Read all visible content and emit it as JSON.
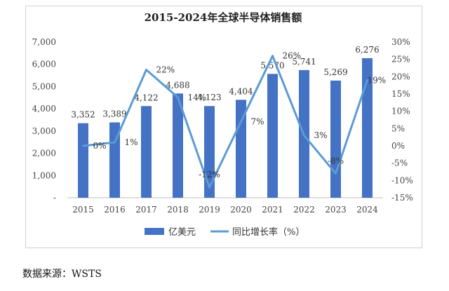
{
  "chart_data": {
    "type": "bar",
    "title": "2015-2024年全球半导体销售额",
    "categories": [
      "2015",
      "2016",
      "2017",
      "2018",
      "2019",
      "2020",
      "2021",
      "2022",
      "2023",
      "2024"
    ],
    "series": [
      {
        "name": "亿美元",
        "type": "bar",
        "axis": "left",
        "color": "#4472C4",
        "values": [
          3352,
          3389,
          4122,
          4688,
          4123,
          4404,
          5570,
          5741,
          5269,
          6276
        ],
        "labels": [
          "3,352",
          "3,389",
          "4,122",
          "4,688",
          "4,123",
          "4,404",
          "5,570",
          "5,741",
          "5,269",
          "6,276"
        ]
      },
      {
        "name": "同比增长率（%）",
        "type": "line",
        "axis": "right",
        "color": "#5B9BD5",
        "values": [
          0,
          1,
          22,
          14,
          -12,
          7,
          26,
          3,
          -8,
          19
        ],
        "labels": [
          "0%",
          "1%",
          "22%",
          "14%",
          "-12%",
          "7%",
          "26%",
          "3%",
          "-8%",
          "19%"
        ]
      }
    ],
    "y_left": {
      "ylim": [
        0,
        7000
      ],
      "ticks": [
        "-",
        "1,000",
        "2,000",
        "3,000",
        "4,000",
        "5,000",
        "6,000",
        "7,000"
      ]
    },
    "y_right": {
      "ylim": [
        -15,
        30
      ],
      "ticks": [
        "-15%",
        "-10%",
        "-5%",
        "0%",
        "5%",
        "10%",
        "15%",
        "20%",
        "25%",
        "30%"
      ]
    },
    "grid": false,
    "legend": "bottom"
  },
  "source_note": "数据来源：WSTS"
}
